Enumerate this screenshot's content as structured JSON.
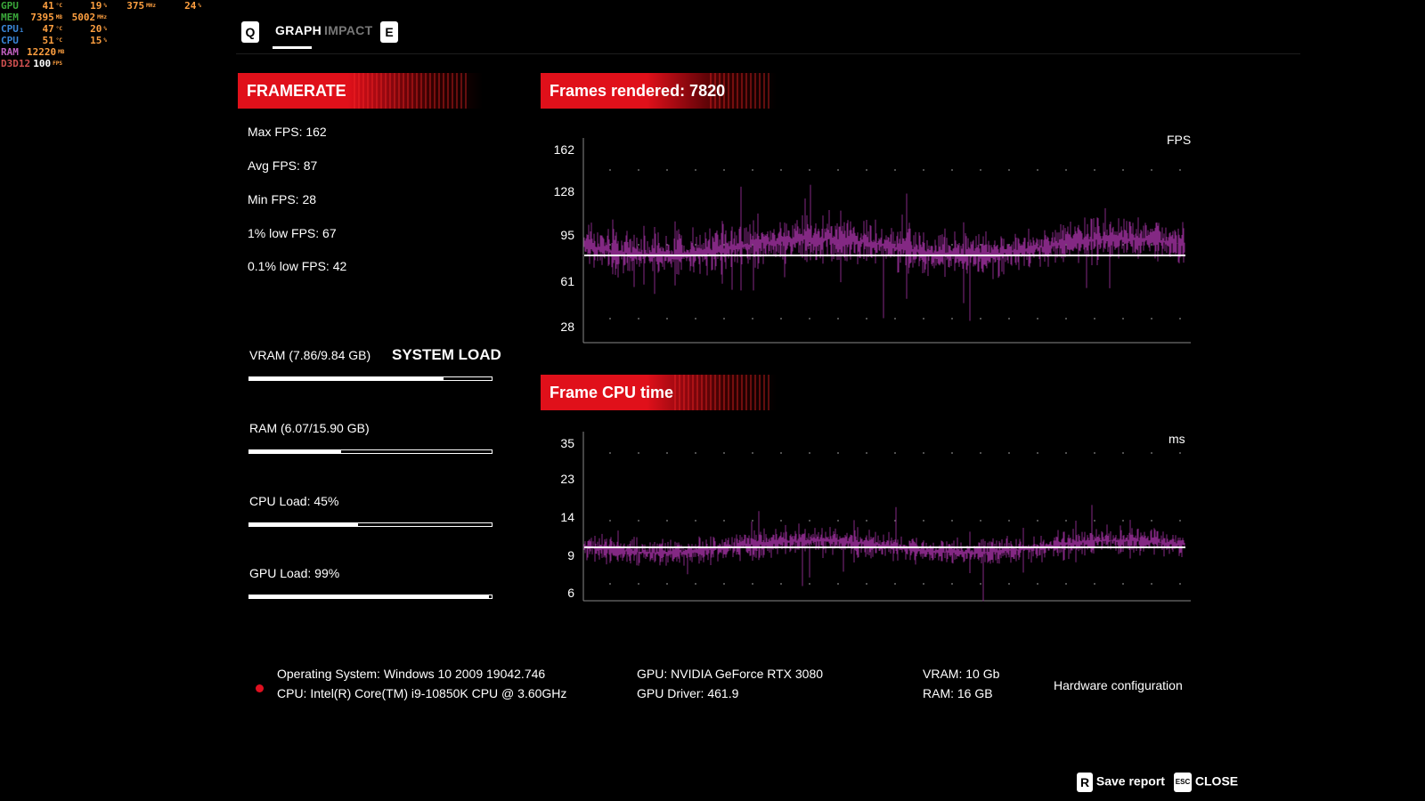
{
  "overlay": {
    "rows": [
      {
        "label": "GPU",
        "color": "#3aa83a",
        "values": [
          "41",
          "19",
          "375",
          "24"
        ],
        "units": [
          "°C",
          "%",
          "MHz",
          "%"
        ]
      },
      {
        "label": "MEM",
        "color": "#3aa83a",
        "values": [
          "7395",
          "5002"
        ],
        "units": [
          "MB",
          "MHz"
        ]
      },
      {
        "label": "CPU₁",
        "color": "#3a86d8",
        "values": [
          "47",
          "20"
        ],
        "units": [
          "°C",
          "%"
        ]
      },
      {
        "label": "CPU",
        "color": "#3a86d8",
        "values": [
          "51",
          "15"
        ],
        "units": [
          "°C",
          "%"
        ]
      },
      {
        "label": "RAM",
        "color": "#c060c0",
        "values": [
          "12220"
        ],
        "units": [
          "MB"
        ]
      },
      {
        "label": "D3D12",
        "color": "#d05050",
        "values": [
          "100"
        ],
        "units": [
          "FPS"
        ]
      }
    ]
  },
  "tabs": {
    "left_key": "Q",
    "right_key": "E",
    "items": [
      {
        "label": "GRAPH",
        "active": true
      },
      {
        "label": "IMPACT",
        "active": false
      }
    ]
  },
  "framerate": {
    "header": "FRAMERATE",
    "stats": [
      "Max FPS: 162",
      "Avg FPS: 87",
      "Min FPS: 28",
      "1% low FPS: 67",
      "0.1% low FPS: 42"
    ]
  },
  "system_load": {
    "title": "SYSTEM LOAD",
    "bars": [
      {
        "label": "VRAM (7.86/9.84 GB)",
        "fraction": 0.8
      },
      {
        "label": "RAM (6.07/15.90 GB)",
        "fraction": 0.38
      },
      {
        "label": "CPU Load: 45%",
        "fraction": 0.45
      },
      {
        "label": "GPU Load: 99%",
        "fraction": 0.99
      }
    ]
  },
  "fps_chart": {
    "header": "Frames rendered: 7820",
    "unit_label": "FPS",
    "y_ticks": [
      "162",
      "128",
      "95",
      "61",
      "28"
    ],
    "avg_value": 87,
    "line_color": "#8a2a8a"
  },
  "cpu_chart": {
    "header": "Frame CPU time",
    "unit_label": "ms",
    "y_ticks": [
      "35",
      "23",
      "14",
      "9",
      "6"
    ],
    "avg_value": 10,
    "line_color": "#8a2a8a"
  },
  "hardware": {
    "os": "Operating System: Windows 10 2009 19042.746",
    "cpu": "CPU: Intel(R) Core(TM) i9-10850K CPU @ 3.60GHz",
    "gpu": "GPU: NVIDIA GeForce RTX 3080",
    "gpu_driver": "GPU Driver: 461.9",
    "vram": "VRAM: 10 Gb",
    "ram": "RAM: 16 GB",
    "config_label": "Hardware configuration"
  },
  "footer": {
    "save_key": "R",
    "save_label": "Save report",
    "close_key": "ESC",
    "close_label": "CLOSE"
  }
}
